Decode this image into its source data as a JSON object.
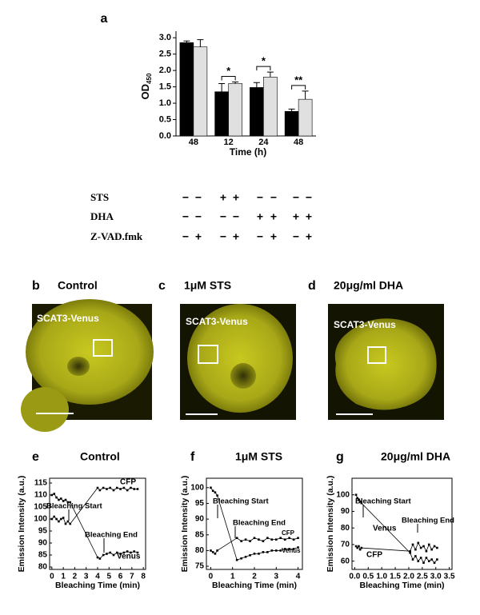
{
  "chart_data": [
    {
      "type": "bar",
      "panel": "a",
      "ylabel": "OD",
      "ylabel_subscript": "450",
      "xlabel": "Time (h)",
      "categories": [
        "48",
        "12",
        "24",
        "48"
      ],
      "series": [
        {
          "color": "#000000",
          "values": [
            2.85,
            1.35,
            1.48,
            0.75
          ],
          "errors": [
            0.05,
            0.25,
            0.15,
            0.07
          ]
        },
        {
          "color": "#e0e0e0",
          "values": [
            2.72,
            1.6,
            1.8,
            1.12
          ],
          "errors": [
            0.22,
            0.05,
            0.15,
            0.25
          ]
        }
      ],
      "significance": [
        "*",
        "*",
        "**"
      ],
      "ylim": [
        0,
        3.2
      ],
      "yticks": [
        {
          "value": 0,
          "label": "0.0"
        },
        0.5,
        {
          "value": 1,
          "label": "1.0"
        },
        1.5,
        {
          "value": 2,
          "label": "2.0"
        },
        2.5,
        {
          "value": 3,
          "label": "3.0"
        }
      ]
    },
    {
      "type": "line",
      "panel": "e",
      "title": "Control",
      "ylabel": "Emission Intensity (a.u.)",
      "xlabel": "Bleaching Time (min)",
      "annotations": [
        "Bleaching Start",
        "Bleaching End"
      ],
      "xlim": [
        -0.2,
        8.2
      ],
      "xticks": [
        0,
        1,
        2,
        3,
        4,
        5,
        6,
        7,
        8
      ],
      "ylim": [
        79,
        117
      ],
      "yticks": [
        80,
        85,
        90,
        95,
        100,
        105,
        110,
        115
      ],
      "series": [
        {
          "name": "CFP",
          "color": "#000000",
          "x": [
            0,
            0.2,
            0.4,
            0.6,
            0.8,
            1.0,
            1.2,
            1.4,
            1.6,
            4.0,
            4.2,
            4.5,
            4.8,
            5.1,
            5.4,
            5.7,
            6.0,
            6.3,
            6.6,
            6.9,
            7.2,
            7.5
          ],
          "values": [
            100,
            101,
            100,
            99,
            100,
            100.5,
            98,
            99,
            98,
            113,
            112,
            113,
            112.5,
            113,
            112,
            113,
            112.5,
            113,
            112,
            113,
            112.5,
            112.5
          ]
        },
        {
          "name": "Venus",
          "color": "#000000",
          "x": [
            0,
            0.2,
            0.4,
            0.6,
            0.8,
            1.0,
            1.2,
            1.4,
            1.6,
            4.0,
            4.2,
            4.5,
            4.8,
            5.1,
            5.4,
            5.7,
            6.0,
            6.3,
            6.6,
            6.9,
            7.2,
            7.5
          ],
          "values": [
            110,
            110.5,
            109,
            108,
            108.5,
            107.5,
            108,
            107,
            107,
            84,
            83.5,
            85,
            85.5,
            86,
            85,
            86,
            85.5,
            86,
            86.5,
            86,
            86.5,
            86
          ]
        }
      ]
    },
    {
      "type": "line",
      "panel": "f",
      "title": "1μM STS",
      "ylabel": "Emission Intensity (a.u.)",
      "xlabel": "Bleaching Time (min)",
      "annotations": [
        "Bleaching Start",
        "Bleaching End"
      ],
      "xlim": [
        -0.2,
        4.2
      ],
      "xticks": [
        0,
        1,
        2,
        3,
        4
      ],
      "ylim": [
        74,
        103
      ],
      "yticks": [
        75,
        80,
        85,
        90,
        95,
        100
      ],
      "series": [
        {
          "name": "CFP",
          "color": "#000000",
          "x": [
            0,
            0.1,
            0.2,
            0.3,
            1.2,
            1.4,
            1.6,
            1.8,
            2.0,
            2.2,
            2.4,
            2.6,
            2.8,
            3.0,
            3.2,
            3.4,
            3.6,
            3.8,
            4.0
          ],
          "values": [
            80,
            79.5,
            79,
            80,
            84,
            83,
            83.5,
            83,
            84,
            83.5,
            83,
            84,
            83.5,
            83.5,
            84,
            83.5,
            84,
            83.5,
            84
          ]
        },
        {
          "name": "Venus",
          "color": "#000000",
          "x": [
            0,
            0.1,
            0.2,
            0.3,
            1.2,
            1.4,
            1.6,
            1.8,
            2.0,
            2.2,
            2.4,
            2.6,
            2.8,
            3.0,
            3.2,
            3.4,
            3.6,
            3.8,
            4.0
          ],
          "values": [
            100,
            99,
            98.5,
            97.5,
            77,
            77.5,
            78,
            78.5,
            79,
            79,
            79.5,
            79.5,
            80,
            80,
            80,
            80.5,
            80.5,
            80.5,
            81
          ]
        }
      ]
    },
    {
      "type": "line",
      "panel": "g",
      "title": "20μg/ml DHA",
      "ylabel": "Emission Intensity (a.u.)",
      "xlabel": "Bleaching Time (min)",
      "annotations": [
        "Bleaching Start",
        "Bleaching End"
      ],
      "xlim": [
        -0.1,
        3.6
      ],
      "xticks": [
        {
          "value": 0,
          "label": "0.0"
        },
        0.5,
        {
          "value": 1,
          "label": "1.0"
        },
        1.5,
        {
          "value": 2,
          "label": "2.0"
        },
        2.5,
        {
          "value": 3,
          "label": "3.0"
        },
        3.5
      ],
      "ylim": [
        55,
        110
      ],
      "yticks": [
        60,
        70,
        80,
        90,
        100
      ],
      "series": [
        {
          "name": "CFP",
          "color": "#000000",
          "x": [
            0.05,
            0.1,
            0.15,
            0.2,
            0.25,
            2.05,
            2.15,
            2.25,
            2.35,
            2.45,
            2.55,
            2.65,
            2.75,
            2.85,
            2.95,
            3.05
          ],
          "values": [
            69,
            68,
            69,
            67,
            68,
            66,
            70,
            67,
            71,
            68,
            69,
            66,
            70,
            67,
            69,
            68
          ]
        },
        {
          "name": "Venus",
          "color": "#000000",
          "x": [
            0.05,
            0.1,
            0.15,
            0.2,
            0.25,
            2.05,
            2.15,
            2.25,
            2.35,
            2.45,
            2.55,
            2.65,
            2.75,
            2.85,
            2.95,
            3.05
          ],
          "values": [
            100,
            98,
            97,
            96,
            95,
            65,
            61,
            63,
            60,
            62,
            59,
            62,
            60,
            61,
            59,
            61
          ]
        }
      ]
    }
  ],
  "treatments": {
    "rows": [
      {
        "name": "STS",
        "signs": [
          "−",
          "−",
          "+",
          "+",
          "−",
          "−",
          "−",
          "−"
        ]
      },
      {
        "name": "DHA",
        "signs": [
          "−",
          "−",
          "−",
          "−",
          "+",
          "+",
          "+",
          "+"
        ]
      },
      {
        "name": "Z-VAD.fmk",
        "signs": [
          "−",
          "+",
          "−",
          "+",
          "−",
          "+",
          "−",
          "+"
        ]
      }
    ]
  },
  "panels": [
    {
      "letter": "b",
      "title": "Control",
      "label": "SCAT3-Venus"
    },
    {
      "letter": "c",
      "title": "1μM STS",
      "label": "SCAT3-Venus"
    },
    {
      "letter": "d",
      "title": "20μg/ml DHA",
      "label": "SCAT3-Venus"
    }
  ]
}
